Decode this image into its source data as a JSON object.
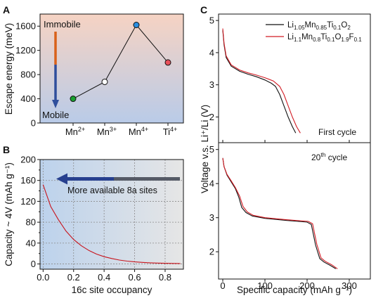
{
  "panel_labels": {
    "a": "A",
    "b": "B",
    "c": "C"
  },
  "chart_data": [
    {
      "panel": "A",
      "type": "scatter",
      "x_categories": [
        {
          "base": "Mn",
          "sup": "2+"
        },
        {
          "base": "Mn",
          "sup": "3+"
        },
        {
          "base": "Mn",
          "sup": "4+"
        },
        {
          "base": "Ti",
          "sup": "4+"
        }
      ],
      "ylabel": "Escape energy (meV)",
      "ylim": [
        0,
        1800
      ],
      "yticks": [
        "0",
        "400",
        "800",
        "1200",
        "1600"
      ],
      "values": [
        400,
        680,
        1620,
        1000
      ],
      "connected": [
        true,
        true,
        true,
        false
      ],
      "marker_colors": [
        "#19a030",
        "#ffffff",
        "#2a8ee0",
        "#e8505a"
      ],
      "background_gradient": [
        "#f6d3c3",
        "#b9cbe8"
      ],
      "annotations": {
        "top": "Immobile",
        "bottom": "Mobile"
      },
      "annotation_colors": {
        "top": "#e06a1a",
        "bottom": "#2a7fd0"
      },
      "arrow_colors": [
        "#d9611a",
        "#2f4e9c"
      ]
    },
    {
      "panel": "B",
      "type": "line",
      "xlabel": "16c site occupancy",
      "ylabel": "Capacity ~ 4V  (mAh g⁻¹)",
      "xlim": [
        -0.02,
        0.92
      ],
      "ylim": [
        -10,
        200
      ],
      "xticks": [
        "0.0",
        "0.2",
        "0.4",
        "0.6",
        "0.8"
      ],
      "yticks": [
        "0",
        "20",
        "40",
        "60",
        "80",
        "100",
        "120",
        "140",
        "160",
        "180",
        "200"
      ],
      "grid": true,
      "x": [
        0.0,
        0.05,
        0.1,
        0.15,
        0.2,
        0.25,
        0.3,
        0.35,
        0.4,
        0.45,
        0.5,
        0.55,
        0.6,
        0.65,
        0.7,
        0.75,
        0.8,
        0.85,
        0.9
      ],
      "y": [
        152,
        110,
        85,
        63,
        47,
        35,
        26,
        19,
        14,
        10.5,
        7.5,
        5.5,
        4,
        3,
        2.3,
        1.7,
        1.3,
        1.0,
        0.8
      ],
      "line_color": "#c8141c",
      "annotation": "More available 8a sites",
      "annotation_color": "#2a7fd0",
      "background_gradient": [
        "#bcd2ec",
        "#e6e6e6"
      ]
    },
    {
      "panel": "C",
      "type": "line",
      "xlabel": "Specific capacity (mAh g⁻¹)",
      "ylabel": "Voltage v.s. Li⁺/Li (V)",
      "xlim": [
        -10,
        350
      ],
      "xticks": [
        "0",
        "100",
        "200",
        "300"
      ],
      "subplots": [
        {
          "label": "First cycle",
          "ylim": [
            1.2,
            5.2
          ],
          "yticks": [
            "1",
            "2",
            "3",
            "4",
            "5"
          ],
          "series": [
            {
              "color": "#111111",
              "x": [
                0,
                3,
                8,
                20,
                40,
                60,
                80,
                100,
                115,
                125,
                135,
                145,
                155,
                165,
                173
              ],
              "y": [
                4.7,
                4.25,
                3.85,
                3.58,
                3.42,
                3.33,
                3.25,
                3.15,
                3.05,
                2.95,
                2.7,
                2.35,
                2.0,
                1.7,
                1.5
              ]
            },
            {
              "color": "#d21c24",
              "x": [
                0,
                3,
                8,
                20,
                40,
                60,
                80,
                100,
                120,
                135,
                145,
                155,
                165,
                175,
                184
              ],
              "y": [
                4.75,
                4.3,
                3.9,
                3.62,
                3.46,
                3.37,
                3.3,
                3.22,
                3.12,
                2.95,
                2.7,
                2.35,
                2.0,
                1.7,
                1.5
              ]
            }
          ]
        },
        {
          "label": "20th cycle",
          "label_parts": {
            "base": "20",
            "sup": "th",
            "rest": " cycle"
          },
          "ylim": [
            1.2,
            5.2
          ],
          "yticks": [
            "2",
            "3",
            "4",
            "5"
          ],
          "series": [
            {
              "color": "#111111",
              "x": [
                0,
                3,
                10,
                20,
                30,
                38,
                45,
                55,
                70,
                100,
                150,
                200,
                210,
                215,
                220,
                230,
                240,
                255,
                268
              ],
              "y": [
                4.75,
                4.5,
                4.25,
                4.05,
                3.85,
                3.6,
                3.3,
                3.15,
                3.05,
                2.98,
                2.92,
                2.87,
                2.8,
                2.5,
                2.2,
                1.8,
                1.7,
                1.6,
                1.5
              ]
            },
            {
              "color": "#d21c24",
              "x": [
                0,
                3,
                10,
                20,
                30,
                40,
                48,
                58,
                72,
                100,
                150,
                203,
                213,
                218,
                223,
                233,
                243,
                258,
                272
              ],
              "y": [
                4.75,
                4.5,
                4.27,
                4.08,
                3.88,
                3.63,
                3.33,
                3.17,
                3.07,
                3.0,
                2.94,
                2.89,
                2.82,
                2.52,
                2.22,
                1.82,
                1.72,
                1.62,
                1.5
              ]
            }
          ]
        }
      ],
      "legend": [
        {
          "color": "#111111",
          "parts": [
            [
              "Li",
              ""
            ],
            [
              "1.05",
              "sub"
            ],
            [
              "Mn",
              ""
            ],
            [
              "0.85",
              "sub"
            ],
            [
              "Ti",
              ""
            ],
            [
              "0.1",
              "sub"
            ],
            [
              "O",
              ""
            ],
            [
              "2",
              "sub"
            ]
          ]
        },
        {
          "color": "#d21c24",
          "parts": [
            [
              "Li",
              ""
            ],
            [
              "1.1",
              "sub"
            ],
            [
              "Mn",
              ""
            ],
            [
              "0.8",
              "sub"
            ],
            [
              "Ti",
              ""
            ],
            [
              "0.1",
              "sub"
            ],
            [
              "O",
              ""
            ],
            [
              "1.9",
              "sub"
            ],
            [
              "F",
              ""
            ],
            [
              "0.1",
              "sub"
            ]
          ]
        }
      ],
      "legend_position": "top-right"
    }
  ]
}
